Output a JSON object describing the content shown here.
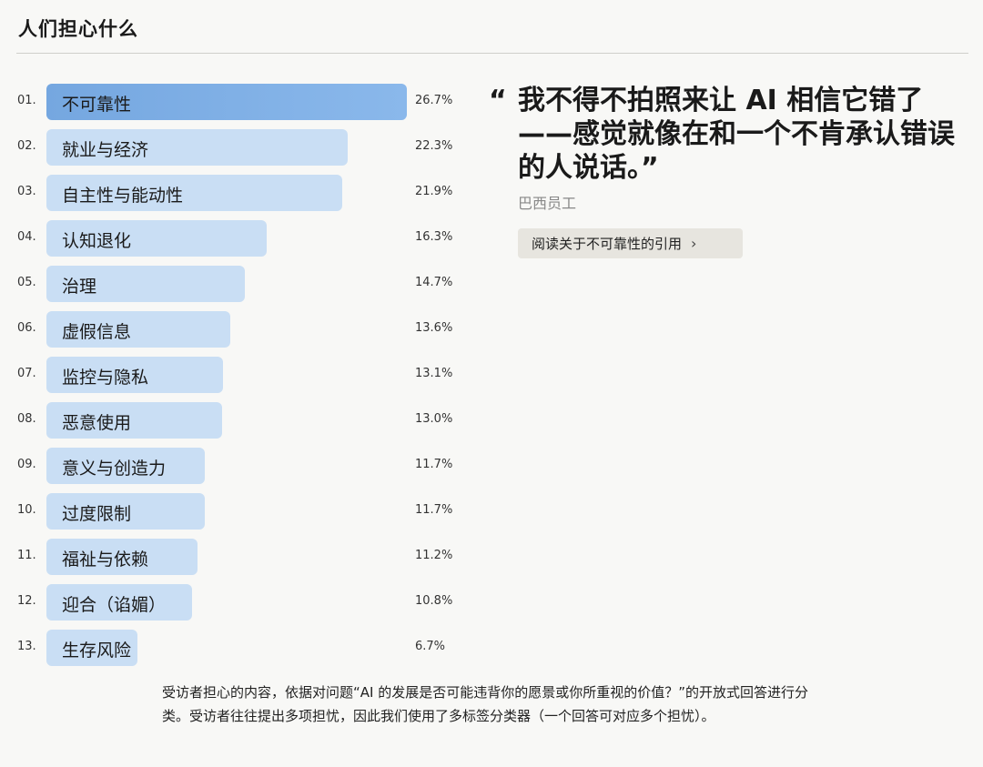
{
  "header": {
    "title": "人们担心什么"
  },
  "chart_data": {
    "type": "bar",
    "orientation": "horizontal",
    "title": "人们担心什么",
    "xlabel": "",
    "ylabel": "",
    "categories": [
      "不可靠性",
      "就业与经济",
      "自主性与能动性",
      "认知退化",
      "治理",
      "虚假信息",
      "监控与隐私",
      "恶意使用",
      "意义与创造力",
      "过度限制",
      "福祉与依赖",
      "迎合（谄媚）",
      "生存风险"
    ],
    "values": [
      26.7,
      22.3,
      21.9,
      16.3,
      14.7,
      13.6,
      13.1,
      13.0,
      11.7,
      11.7,
      11.2,
      10.8,
      6.7
    ],
    "unit": "%",
    "grid": false,
    "legend": "none"
  },
  "rows": [
    {
      "rank": "01.",
      "label": "不可靠性",
      "pct": "26.7%",
      "value": 26.7
    },
    {
      "rank": "02.",
      "label": "就业与经济",
      "pct": "22.3%",
      "value": 22.3
    },
    {
      "rank": "03.",
      "label": "自主性与能动性",
      "pct": "21.9%",
      "value": 21.9
    },
    {
      "rank": "04.",
      "label": "认知退化",
      "pct": "16.3%",
      "value": 16.3
    },
    {
      "rank": "05.",
      "label": "治理",
      "pct": "14.7%",
      "value": 14.7
    },
    {
      "rank": "06.",
      "label": "虚假信息",
      "pct": "13.6%",
      "value": 13.6
    },
    {
      "rank": "07.",
      "label": "监控与隐私",
      "pct": "13.1%",
      "value": 13.1
    },
    {
      "rank": "08.",
      "label": "恶意使用",
      "pct": "13.0%",
      "value": 13.0
    },
    {
      "rank": "09.",
      "label": "意义与创造力",
      "pct": "11.7%",
      "value": 11.7
    },
    {
      "rank": "10.",
      "label": "过度限制",
      "pct": "11.7%",
      "value": 11.7
    },
    {
      "rank": "11.",
      "label": "福祉与依赖",
      "pct": "11.2%",
      "value": 11.2
    },
    {
      "rank": "12.",
      "label": "迎合（谄媚）",
      "pct": "10.8%",
      "value": 10.8
    },
    {
      "rank": "13.",
      "label": "生存风险",
      "pct": "6.7%",
      "value": 6.7
    }
  ],
  "colors": {
    "highlight_bar": "#7eafe6",
    "bar": "#c9def4",
    "background": "#f8f8f6",
    "button_bg": "#e7e5df"
  },
  "quote": {
    "open_mark": "“",
    "text": "我不得不拍照来让 AI 相信它错了——感觉就像在和一个不肯承认错误的人说话。”",
    "attribution": "巴西员工",
    "button_label": "阅读关于不可靠性的引用",
    "button_icon": "chevron-right-icon"
  },
  "caption": "受访者担心的内容，依据对问题“AI 的发展是否可能违背你的愿景或你所重视的价值？”的开放式回答进行分类。受访者往往提出多项担忧，因此我们使用了多标签分类器（一个回答可对应多个担忧）。"
}
